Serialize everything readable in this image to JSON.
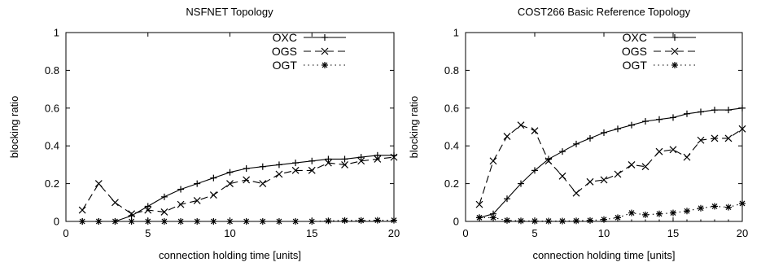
{
  "chart_data": [
    {
      "type": "line",
      "title": "NSFNET Topology",
      "xlabel": "connection holding time [units]",
      "ylabel": "blocking ratio",
      "xlim": [
        0,
        20
      ],
      "ylim": [
        0,
        1
      ],
      "xticks": [
        "0",
        "5",
        "10",
        "15",
        "20"
      ],
      "yticks": [
        "0",
        "0.2",
        "0.4",
        "0.6",
        "0.8",
        "1"
      ],
      "legend_position": "top-right",
      "grid": false,
      "x": [
        1,
        2,
        3,
        4,
        5,
        6,
        7,
        8,
        9,
        10,
        11,
        12,
        13,
        14,
        15,
        16,
        17,
        18,
        19,
        20
      ],
      "series": [
        {
          "name": "OXC",
          "style": "solid",
          "marker": "plus",
          "values": [
            0.0,
            0.0,
            0.0,
            0.03,
            0.08,
            0.13,
            0.17,
            0.2,
            0.23,
            0.26,
            0.28,
            0.29,
            0.3,
            0.31,
            0.32,
            0.33,
            0.33,
            0.34,
            0.35,
            0.35
          ]
        },
        {
          "name": "OGS",
          "style": "dashed",
          "marker": "x",
          "values": [
            0.06,
            0.2,
            0.1,
            0.04,
            0.06,
            0.05,
            0.09,
            0.11,
            0.14,
            0.2,
            0.22,
            0.2,
            0.25,
            0.27,
            0.27,
            0.31,
            0.3,
            0.32,
            0.33,
            0.34
          ]
        },
        {
          "name": "OGT",
          "style": "dotted",
          "marker": "star",
          "values": [
            0.0,
            0.0,
            0.0,
            0.0,
            0.0,
            0.0,
            0.0,
            0.0,
            0.0,
            0.0,
            0.0,
            0.0,
            0.0,
            0.0,
            0.0,
            0.003,
            0.005,
            0.005,
            0.006,
            0.006
          ]
        }
      ]
    },
    {
      "type": "line",
      "title": "COST266 Basic Reference Topology",
      "xlabel": "connection holding time [units]",
      "ylabel": "blocking ratio",
      "xlim": [
        0,
        20
      ],
      "ylim": [
        0,
        1
      ],
      "xticks": [
        "0",
        "5",
        "10",
        "15",
        "20"
      ],
      "yticks": [
        "0",
        "0.2",
        "0.4",
        "0.6",
        "0.8",
        "1"
      ],
      "legend_position": "top-right",
      "grid": false,
      "x": [
        1,
        2,
        3,
        4,
        5,
        6,
        7,
        8,
        9,
        10,
        11,
        12,
        13,
        14,
        15,
        16,
        17,
        18,
        19,
        20
      ],
      "series": [
        {
          "name": "OXC",
          "style": "solid",
          "marker": "plus",
          "values": [
            0.02,
            0.04,
            0.12,
            0.2,
            0.27,
            0.33,
            0.37,
            0.41,
            0.44,
            0.47,
            0.49,
            0.51,
            0.53,
            0.54,
            0.55,
            0.57,
            0.58,
            0.59,
            0.59,
            0.6
          ]
        },
        {
          "name": "OGS",
          "style": "dashed",
          "marker": "x",
          "values": [
            0.09,
            0.32,
            0.45,
            0.51,
            0.48,
            0.32,
            0.24,
            0.15,
            0.21,
            0.22,
            0.25,
            0.3,
            0.29,
            0.37,
            0.38,
            0.34,
            0.43,
            0.44,
            0.44,
            0.49
          ]
        },
        {
          "name": "OGT",
          "style": "dotted",
          "marker": "star",
          "values": [
            0.02,
            0.02,
            0.005,
            0.003,
            0.002,
            0.002,
            0.002,
            0.003,
            0.005,
            0.01,
            0.02,
            0.045,
            0.035,
            0.04,
            0.045,
            0.055,
            0.07,
            0.08,
            0.075,
            0.095
          ]
        }
      ]
    }
  ]
}
